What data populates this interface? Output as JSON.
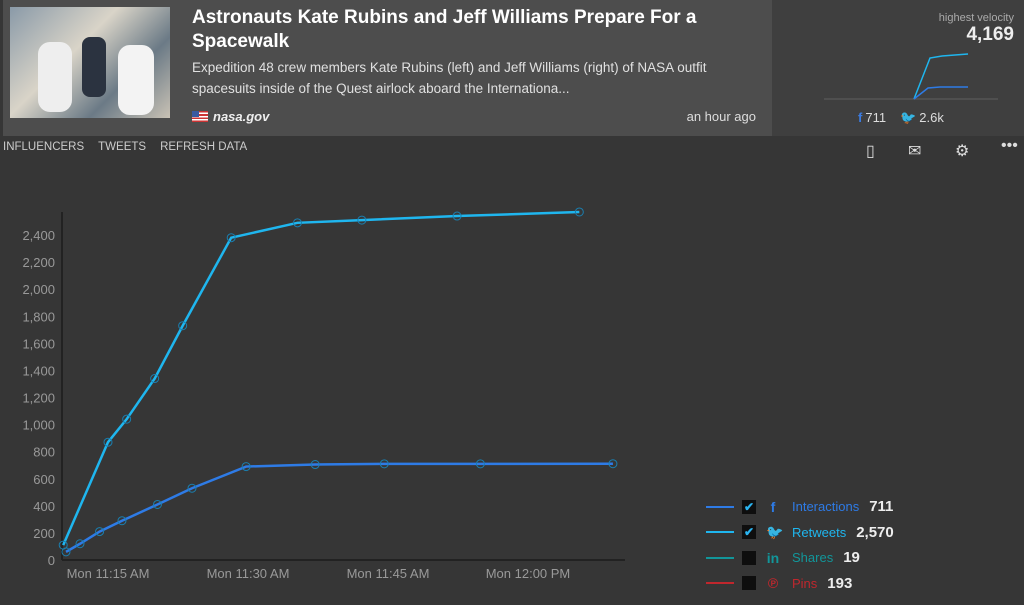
{
  "article": {
    "title": "Astronauts Kate Rubins and Jeff Williams Prepare For a Spacewalk",
    "description": "Expedition 48 crew members Kate Rubins (left) and Jeff Williams (right) of NASA outfit spacesuits inside of the Quest airlock aboard the Internationa...",
    "source": "nasa.gov",
    "time": "an hour ago"
  },
  "velocity": {
    "label": "highest velocity",
    "value": "4,169",
    "facebook_count": "711",
    "twitter_count": "2.6k"
  },
  "nav": [
    "INFLUENCERS",
    "TWEETS",
    "REFRESH DATA"
  ],
  "toolbar": {
    "bookmark": "bookmark-icon",
    "email": "mail-icon",
    "settings": "gear-icon",
    "more": "more-icon"
  },
  "legend": [
    {
      "name": "Interactions",
      "value": "711",
      "checked": true,
      "color": "#2e7be6",
      "icon": "f"
    },
    {
      "name": "Retweets",
      "value": "2,570",
      "checked": true,
      "color": "#1fb6ef",
      "icon": "🐦"
    },
    {
      "name": "Shares",
      "value": "19",
      "checked": false,
      "color": "#12969a",
      "icon": "in"
    },
    {
      "name": "Pins",
      "value": "193",
      "checked": false,
      "color": "#c0272d",
      "icon": "℗"
    }
  ],
  "chart_data": {
    "type": "line",
    "xlabel": "",
    "ylabel": "",
    "x_units": "minutes after 11:00 AM",
    "x_ticks": [
      {
        "x": 15,
        "label": "Mon 11:15 AM"
      },
      {
        "x": 30,
        "label": "Mon 11:30 AM"
      },
      {
        "x": 45,
        "label": "Mon 11:45 AM"
      },
      {
        "x": 60,
        "label": "Mon 12:00 PM"
      }
    ],
    "y_ticks": [
      0,
      200,
      400,
      600,
      800,
      1000,
      1200,
      1400,
      1600,
      1800,
      2000,
      2200,
      2400
    ],
    "y_tick_labels": [
      "0",
      "200",
      "400",
      "600",
      "800",
      "1,000",
      "1,200",
      "1,400",
      "1,600",
      "1,800",
      "2,000",
      "2,200",
      "2,400"
    ],
    "xlim": [
      9.8,
      70.5
    ],
    "ylim": [
      0,
      2560
    ],
    "series": [
      {
        "name": "Retweets",
        "color": "#1fb6ef",
        "x": [
          10.2,
          15,
          17,
          20,
          23,
          28.2,
          35.3,
          42.2,
          52.4,
          65.5
        ],
        "y": [
          110,
          870,
          1040,
          1340,
          1730,
          2380,
          2490,
          2510,
          2540,
          2570
        ]
      },
      {
        "name": "Interactions",
        "color": "#2e7be6",
        "x": [
          10.5,
          12,
          14.1,
          16.5,
          20.3,
          24,
          29.8,
          37.2,
          44.6,
          54.9,
          69.1
        ],
        "y": [
          60,
          120,
          210,
          290,
          410,
          530,
          690,
          705,
          710,
          710,
          711
        ]
      }
    ]
  }
}
